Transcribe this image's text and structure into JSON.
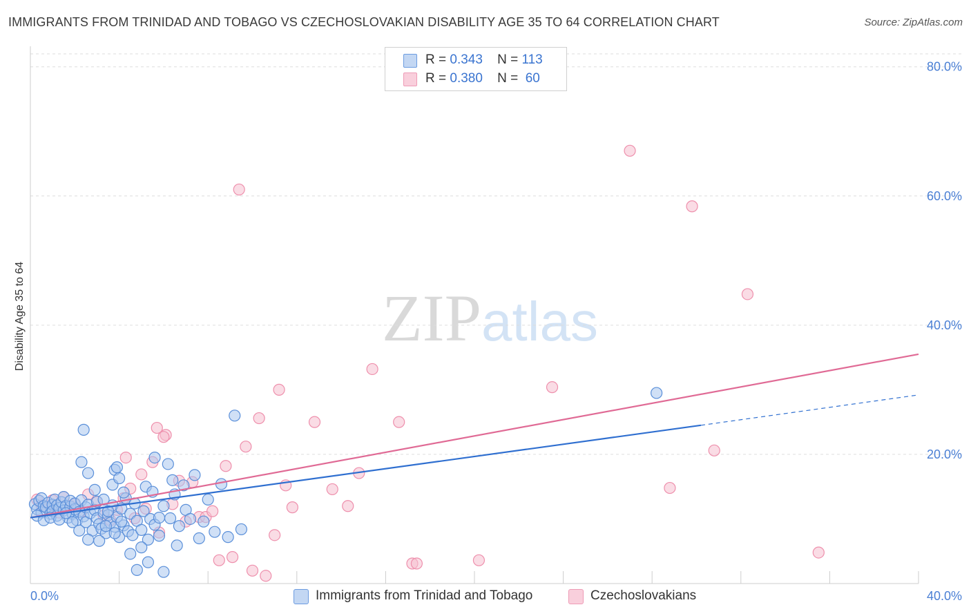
{
  "title": "IMMIGRANTS FROM TRINIDAD AND TOBAGO VS CZECHOSLOVAKIAN DISABILITY AGE 35 TO 64 CORRELATION CHART",
  "source": "Source: ZipAtlas.com",
  "watermark": {
    "zip": "ZIP",
    "atlas": "atlas"
  },
  "colors": {
    "blue_fill": "#aac6ef",
    "blue_stroke": "#5a8fd9",
    "blue_line": "#2f6fd0",
    "pink_fill": "#f6bfd0",
    "pink_stroke": "#ee8fac",
    "pink_line": "#e06a95",
    "tick_text": "#4a7fd4",
    "grid": "#dddddd"
  },
  "legend": {
    "rows": [
      {
        "r_label": "R =",
        "r_value": "0.343",
        "n_label": "N =",
        "n_value": "113"
      },
      {
        "r_label": "R =",
        "r_value": "0.380",
        "n_label": "N =",
        "n_value": "60"
      }
    ]
  },
  "bottom_legend": {
    "series1": "Immigrants from Trinidad and Tobago",
    "series2": "Czechoslovakians"
  },
  "chart_data": {
    "type": "scatter",
    "title": "IMMIGRANTS FROM TRINIDAD AND TOBAGO VS CZECHOSLOVAKIAN DISABILITY AGE 35 TO 64 CORRELATION CHART",
    "xlabel": "",
    "ylabel": "Disability Age 35 to 64",
    "xlim": [
      0,
      40
    ],
    "ylim": [
      0,
      82
    ],
    "y_ticks": [
      {
        "value": 20,
        "label": "20.0%"
      },
      {
        "value": 40,
        "label": "40.0%"
      },
      {
        "value": 60,
        "label": "60.0%"
      },
      {
        "value": 80,
        "label": "80.0%"
      }
    ],
    "x_tick_labels": [
      {
        "value": 0,
        "label": "0.0%"
      },
      {
        "value": 40,
        "label": "40.0%"
      }
    ],
    "x_minor_ticks": [
      4,
      8,
      12,
      16,
      20,
      24,
      28,
      32,
      36,
      40
    ],
    "series": [
      {
        "name": "Immigrants from Trinidad and Tobago",
        "r": 0.343,
        "n": 113,
        "trend": {
          "x0": 0,
          "y0": 10.2,
          "x1": 30.2,
          "y1": 24.5,
          "dash_to_x": 40,
          "dash_to_y": 29.2
        },
        "points": [
          [
            0.2,
            12.3
          ],
          [
            0.3,
            11.5
          ],
          [
            0.4,
            12.8
          ],
          [
            0.5,
            11.0
          ],
          [
            0.5,
            13.2
          ],
          [
            0.6,
            12.0
          ],
          [
            0.7,
            11.8
          ],
          [
            0.8,
            12.5
          ],
          [
            0.9,
            10.8
          ],
          [
            1.0,
            12.2
          ],
          [
            1.0,
            11.2
          ],
          [
            1.1,
            13.0
          ],
          [
            1.2,
            12.1
          ],
          [
            1.2,
            10.5
          ],
          [
            1.3,
            11.7
          ],
          [
            1.4,
            12.6
          ],
          [
            1.5,
            11.3
          ],
          [
            1.5,
            13.4
          ],
          [
            1.6,
            12.0
          ],
          [
            1.7,
            10.2
          ],
          [
            1.8,
            11.9
          ],
          [
            1.8,
            12.8
          ],
          [
            1.9,
            10.8
          ],
          [
            2.0,
            11.5
          ],
          [
            2.0,
            12.4
          ],
          [
            2.1,
            9.8
          ],
          [
            2.2,
            11.1
          ],
          [
            2.3,
            12.9
          ],
          [
            2.4,
            10.4
          ],
          [
            2.5,
            11.8
          ],
          [
            2.5,
            9.5
          ],
          [
            2.6,
            12.2
          ],
          [
            2.7,
            10.9
          ],
          [
            2.8,
            8.2
          ],
          [
            2.9,
            11.4
          ],
          [
            3.0,
            10.1
          ],
          [
            3.0,
            12.7
          ],
          [
            3.1,
            9.2
          ],
          [
            3.2,
            8.5
          ],
          [
            3.3,
            11.0
          ],
          [
            3.4,
            7.8
          ],
          [
            3.5,
            10.6
          ],
          [
            3.6,
            9.4
          ],
          [
            3.7,
            12.1
          ],
          [
            3.8,
            8.8
          ],
          [
            3.9,
            10.3
          ],
          [
            4.0,
            7.2
          ],
          [
            4.1,
            11.6
          ],
          [
            4.2,
            9.0
          ],
          [
            4.3,
            13.2
          ],
          [
            4.4,
            8.1
          ],
          [
            4.5,
            10.8
          ],
          [
            4.6,
            7.5
          ],
          [
            4.7,
            12.4
          ],
          [
            4.8,
            9.7
          ],
          [
            5.0,
            8.3
          ],
          [
            5.1,
            11.2
          ],
          [
            5.2,
            15.0
          ],
          [
            5.3,
            6.8
          ],
          [
            5.4,
            10.0
          ],
          [
            5.5,
            14.2
          ],
          [
            5.6,
            9.1
          ],
          [
            5.8,
            7.4
          ],
          [
            6.0,
            12.0
          ],
          [
            6.2,
            18.5
          ],
          [
            6.4,
            16.0
          ],
          [
            6.5,
            13.8
          ],
          [
            6.7,
            8.9
          ],
          [
            6.9,
            15.2
          ],
          [
            7.0,
            11.4
          ],
          [
            7.2,
            10.0
          ],
          [
            7.4,
            16.8
          ],
          [
            7.6,
            7.0
          ],
          [
            7.8,
            9.6
          ],
          [
            8.0,
            13.0
          ],
          [
            8.3,
            8.0
          ],
          [
            8.6,
            15.4
          ],
          [
            8.9,
            7.2
          ],
          [
            9.2,
            26.0
          ],
          [
            9.5,
            8.4
          ],
          [
            2.3,
            18.8
          ],
          [
            2.4,
            23.8
          ],
          [
            2.6,
            17.1
          ],
          [
            2.9,
            14.5
          ],
          [
            3.3,
            13.0
          ],
          [
            3.5,
            11.2
          ],
          [
            3.7,
            15.3
          ],
          [
            3.8,
            17.6
          ],
          [
            3.9,
            18.0
          ],
          [
            4.0,
            16.3
          ],
          [
            4.2,
            14.1
          ],
          [
            4.5,
            4.6
          ],
          [
            4.8,
            2.1
          ],
          [
            5.0,
            5.6
          ],
          [
            5.3,
            3.3
          ],
          [
            5.6,
            19.5
          ],
          [
            5.8,
            10.2
          ],
          [
            6.0,
            1.8
          ],
          [
            6.3,
            10.1
          ],
          [
            6.6,
            5.9
          ],
          [
            0.3,
            10.5
          ],
          [
            0.6,
            9.8
          ],
          [
            0.9,
            10.2
          ],
          [
            1.3,
            9.9
          ],
          [
            1.6,
            10.9
          ],
          [
            1.9,
            9.5
          ],
          [
            2.2,
            8.2
          ],
          [
            2.6,
            6.8
          ],
          [
            3.1,
            6.6
          ],
          [
            3.4,
            8.9
          ],
          [
            3.8,
            7.8
          ],
          [
            4.1,
            9.6
          ],
          [
            28.2,
            29.5
          ]
        ]
      },
      {
        "name": "Czechoslovakians",
        "r": 0.38,
        "n": 60,
        "trend": {
          "x0": 0,
          "y0": 10.2,
          "x1": 40,
          "y1": 35.5
        },
        "points": [
          [
            0.3,
            13.0
          ],
          [
            0.5,
            12.1
          ],
          [
            0.8,
            11.6
          ],
          [
            1.0,
            12.9
          ],
          [
            1.3,
            11.0
          ],
          [
            1.5,
            13.4
          ],
          [
            1.8,
            12.0
          ],
          [
            2.0,
            12.3
          ],
          [
            2.3,
            11.2
          ],
          [
            2.6,
            13.8
          ],
          [
            3.0,
            12.6
          ],
          [
            3.3,
            10.5
          ],
          [
            3.6,
            9.8
          ],
          [
            3.9,
            11.4
          ],
          [
            4.2,
            13.2
          ],
          [
            4.5,
            14.7
          ],
          [
            4.7,
            10.1
          ],
          [
            5.0,
            16.9
          ],
          [
            5.2,
            11.6
          ],
          [
            5.5,
            18.8
          ],
          [
            5.8,
            7.9
          ],
          [
            6.1,
            23.0
          ],
          [
            6.4,
            12.3
          ],
          [
            6.7,
            15.9
          ],
          [
            7.0,
            9.6
          ],
          [
            7.3,
            15.7
          ],
          [
            7.6,
            10.3
          ],
          [
            7.9,
            10.3
          ],
          [
            8.2,
            11.2
          ],
          [
            8.5,
            3.6
          ],
          [
            8.8,
            18.2
          ],
          [
            9.1,
            4.1
          ],
          [
            9.4,
            61.0
          ],
          [
            9.7,
            21.2
          ],
          [
            10.0,
            2.0
          ],
          [
            10.3,
            25.6
          ],
          [
            10.6,
            1.2
          ],
          [
            11.0,
            7.5
          ],
          [
            11.2,
            30.0
          ],
          [
            11.5,
            15.2
          ],
          [
            11.8,
            11.8
          ],
          [
            12.8,
            25.0
          ],
          [
            13.6,
            14.6
          ],
          [
            14.3,
            12.0
          ],
          [
            14.8,
            17.1
          ],
          [
            15.4,
            33.2
          ],
          [
            16.6,
            25.0
          ],
          [
            17.2,
            3.1
          ],
          [
            17.4,
            3.1
          ],
          [
            20.2,
            3.6
          ],
          [
            23.5,
            30.4
          ],
          [
            27.0,
            67.0
          ],
          [
            28.8,
            14.8
          ],
          [
            29.8,
            58.4
          ],
          [
            30.8,
            20.6
          ],
          [
            32.3,
            44.8
          ],
          [
            35.5,
            4.8
          ],
          [
            4.3,
            19.5
          ],
          [
            5.7,
            24.1
          ],
          [
            6.0,
            22.7
          ]
        ]
      }
    ]
  }
}
